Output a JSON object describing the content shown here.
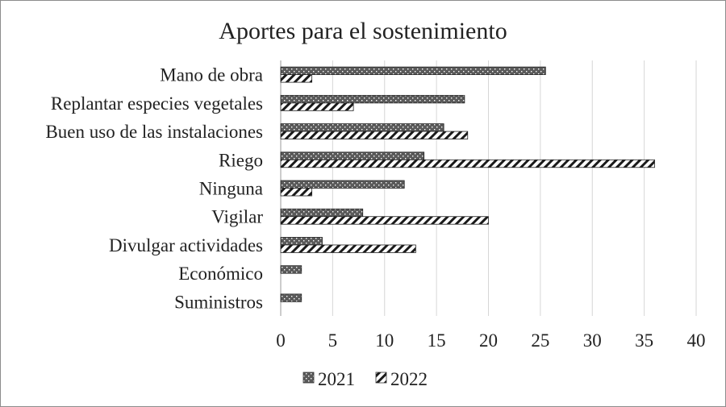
{
  "chart_data": {
    "type": "bar",
    "orientation": "horizontal",
    "title": "Aportes para el sostenimiento",
    "xlabel": "",
    "ylabel": "",
    "categories": [
      "Mano de obra",
      "Replantar especies vegetales",
      "Buen uso de las instalaciones",
      "Riego",
      "Ninguna",
      "Vigilar",
      "Divulgar actividades",
      "Económico",
      "Suministros"
    ],
    "series": [
      {
        "name": "2021",
        "values": [
          25.5,
          17.7,
          15.7,
          13.8,
          11.9,
          7.9,
          4.0,
          2.0,
          2.0
        ],
        "pattern": "dotted-dark"
      },
      {
        "name": "2022",
        "values": [
          3.0,
          7.0,
          18.0,
          36.0,
          3.0,
          20.0,
          13.0,
          null,
          null
        ],
        "pattern": "diagonal-stripes"
      }
    ],
    "xlim": [
      0,
      40
    ],
    "xticks": [
      "0",
      "5",
      "10",
      "15",
      "20",
      "25",
      "30",
      "35",
      "40"
    ],
    "grid": "vertical",
    "legend_position": "bottom"
  }
}
